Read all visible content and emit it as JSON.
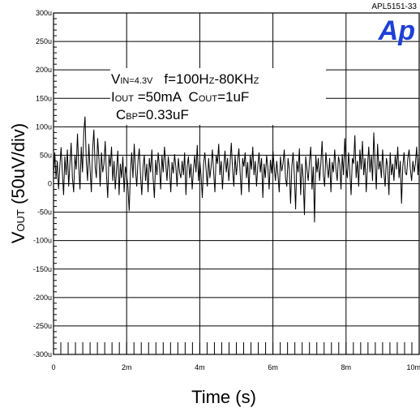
{
  "doc_id": "APL5151-33",
  "logo_text": "Ap",
  "annotations": {
    "line1": {
      "a_main": "V",
      "a_sub": "IN=4.3V",
      "b_main": "f=100H",
      "b_sub": "Z",
      "c_main": "-80KH",
      "c_sub": "Z"
    },
    "line2": {
      "a_main": "I",
      "a_sub": "OUT",
      "b_main": " =50mA  C",
      "b_sub": "OUT",
      "c_main": "=1uF"
    },
    "line3": {
      "a_main": "C",
      "a_sub": "BP",
      "b_main": "=0.33uF"
    }
  },
  "chart_data": {
    "type": "line",
    "title": "",
    "xlabel": "Time (s)",
    "ylabel_main": "V",
    "ylabel_sub": "OUT",
    "ylabel_rest": " (50uV/div)",
    "xlim": [
      0,
      10
    ],
    "ylim": [
      -300,
      300
    ],
    "grid": true,
    "x_ticks": [
      {
        "value": 0,
        "label": "0"
      },
      {
        "value": 2,
        "label": "2m"
      },
      {
        "value": 4,
        "label": "4m"
      },
      {
        "value": 6,
        "label": "6m"
      },
      {
        "value": 8,
        "label": "8m"
      },
      {
        "value": 10,
        "label": "10m"
      }
    ],
    "y_ticks": [
      {
        "value": 300,
        "label": "300u"
      },
      {
        "value": 250,
        "label": "250u"
      },
      {
        "value": 200,
        "label": "200u"
      },
      {
        "value": 150,
        "label": "150u"
      },
      {
        "value": 100,
        "label": "100u"
      },
      {
        "value": 50,
        "label": "50u"
      },
      {
        "value": 0,
        "label": "0"
      },
      {
        "value": -50,
        "label": "-50u"
      },
      {
        "value": -100,
        "label": "-100u"
      },
      {
        "value": -150,
        "label": "-150u"
      },
      {
        "value": -200,
        "label": "-200u"
      },
      {
        "value": -250,
        "label": "-250u"
      },
      {
        "value": -300,
        "label": "-300u"
      }
    ],
    "series": [
      {
        "name": "",
        "x_start": 0,
        "x_end": 10,
        "values": [
          12,
          55,
          8,
          40,
          -10,
          30,
          64,
          20,
          -20,
          48,
          15,
          60,
          -5,
          35,
          72,
          10,
          -15,
          50,
          25,
          88,
          30,
          -10,
          65,
          20,
          90,
          118,
          40,
          5,
          70,
          25,
          -15,
          60,
          95,
          30,
          10,
          80,
          45,
          -5,
          55,
          20,
          35,
          75,
          15,
          -25,
          50,
          30,
          65,
          5,
          40,
          -10,
          25,
          58,
          -20,
          35,
          10,
          48,
          -15,
          30,
          15,
          -5,
          -48,
          20,
          55,
          10,
          70,
          25,
          -5,
          40,
          62,
          15,
          -20,
          30,
          50,
          5,
          35,
          -15,
          45,
          20,
          60,
          10,
          -25,
          42,
          15,
          55,
          30,
          -10,
          50,
          20,
          65,
          35,
          5,
          48,
          25,
          -15,
          38,
          18,
          52,
          30,
          -5,
          45,
          20,
          10,
          40,
          15,
          55,
          -20,
          30,
          48,
          10,
          35,
          -10,
          25,
          50,
          20,
          68,
          5,
          40,
          15,
          -25,
          35,
          55,
          25,
          -5,
          45,
          10,
          30,
          60,
          20,
          -15,
          50,
          35,
          70,
          15,
          40,
          -10,
          30,
          58,
          20,
          45,
          5,
          35,
          72,
          25,
          -5,
          50,
          15,
          40,
          62,
          20,
          -20,
          45,
          30,
          55,
          10,
          38,
          -15,
          50,
          25,
          65,
          15,
          40,
          -5,
          30,
          55,
          20,
          45,
          -25,
          35,
          10,
          50,
          28,
          -10,
          42,
          18,
          58,
          30,
          5,
          40,
          15,
          -15,
          48,
          22,
          35,
          60,
          10,
          -5,
          45,
          25,
          -35,
          30,
          55,
          15,
          -45,
          40,
          20,
          62,
          -20,
          35,
          10,
          -55,
          48,
          25,
          5,
          40,
          65,
          -10,
          30,
          -68,
          50,
          20,
          45,
          5,
          35,
          75,
          15,
          -5,
          55,
          30,
          10,
          45,
          -15,
          38,
          20,
          60,
          25,
          5,
          48,
          35,
          -10,
          52,
          15,
          80,
          30,
          10,
          55,
          20,
          -20,
          45,
          35,
          85,
          10,
          40,
          -5,
          60,
          25,
          75,
          15,
          45,
          -15,
          30,
          65,
          20,
          50,
          5,
          90,
          35,
          -10,
          70,
          25,
          40,
          10,
          60,
          20,
          -5,
          45,
          30,
          -20,
          55,
          15,
          35,
          5,
          50,
          25,
          65,
          10,
          40,
          -35,
          30,
          55,
          20,
          15,
          45,
          60,
          25,
          5,
          40,
          20,
          35,
          65,
          15,
          55
        ]
      }
    ]
  }
}
